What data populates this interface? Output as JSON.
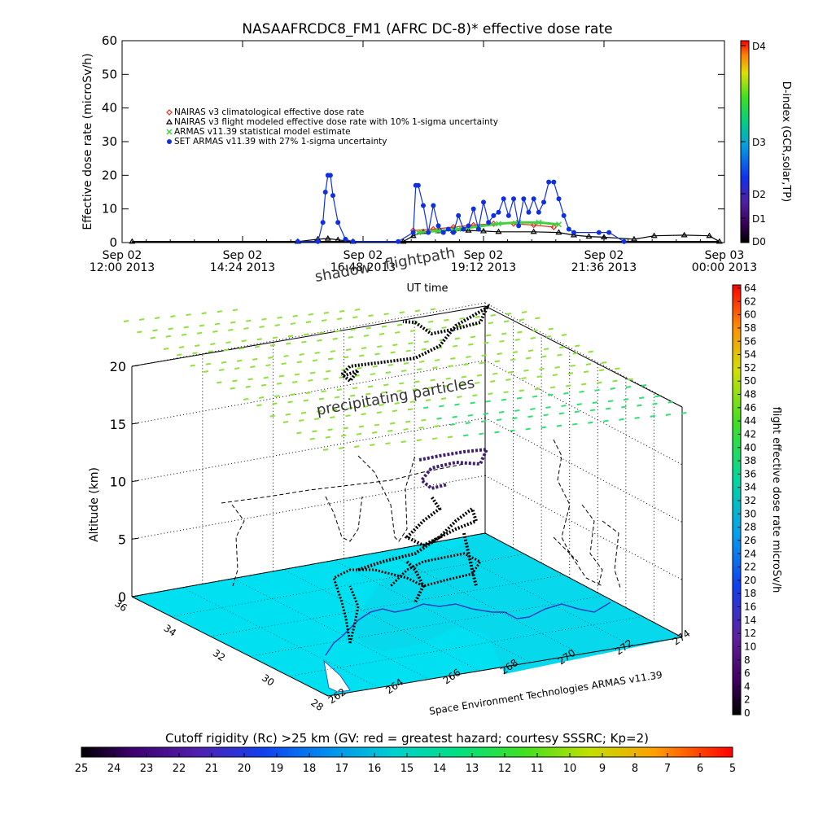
{
  "title": "NASAAFRCDC8_FM1 (AFRC DC-8)* effective dose rate",
  "chart_data": [
    {
      "type": "line",
      "title": "NASAAFRCDC8_FM1 (AFRC DC-8)* effective dose rate",
      "xlabel": "UT time",
      "ylabel": "Effective dose rate (microSv/h)",
      "ylim": [
        0,
        60
      ],
      "yticks": [
        0,
        10,
        20,
        30,
        40,
        50,
        60
      ],
      "xticks": [
        {
          "line1": "Sep 02",
          "line2": "12:00 2013",
          "hour": 12.0
        },
        {
          "line1": "Sep 02",
          "line2": "14:24 2013",
          "hour": 14.4
        },
        {
          "line1": "Sep 02",
          "line2": "16:48 2013",
          "hour": 16.8
        },
        {
          "line1": "Sep 02",
          "line2": "19:12 2013",
          "hour": 19.2
        },
        {
          "line1": "Sep 02",
          "line2": "21:36 2013",
          "hour": 21.6
        },
        {
          "line1": "Sep 03",
          "line2": "00:00 2013",
          "hour": 24.0
        }
      ],
      "xlim_hours": [
        12.0,
        24.0
      ],
      "legend": [
        {
          "label": "NAIRAS v3 climatological effective dose rate",
          "color": "#e03020",
          "marker": "diamond"
        },
        {
          "label": "NAIRAS v3 flight modeled effective dose rate with 10% 1-sigma uncertainty",
          "color": "#000000",
          "marker": "triangle"
        },
        {
          "label": "ARMAS v11.39 statistical model estimate",
          "color": "#40d040",
          "marker": "x"
        },
        {
          "label": "SET ARMAS v11.39 with 27% 1-sigma uncertainty",
          "color": "#1030e0",
          "marker": "dot"
        }
      ],
      "legend_position": "top-left",
      "series": [
        {
          "name": "NAIRAS v3 flight modeled effective dose rate with 10% 1-sigma uncertainty",
          "x": [
            12.2,
            15.5,
            15.9,
            16.1,
            16.3,
            16.6,
            17.6,
            17.8,
            18.0,
            18.3,
            18.6,
            18.9,
            19.2,
            19.5,
            20.2,
            20.7,
            21.0,
            21.3,
            21.6,
            22.2,
            22.6,
            23.2,
            23.7,
            23.9
          ],
          "values": [
            0.3,
            0.3,
            1.0,
            1.2,
            0.8,
            0.3,
            0.3,
            2.0,
            3.2,
            3.4,
            3.6,
            3.6,
            3.4,
            3.2,
            3.2,
            3.0,
            2.2,
            1.8,
            1.6,
            1.0,
            2.0,
            2.2,
            2.0,
            0.3
          ]
        },
        {
          "name": "NAIRAS v3 climatological effective dose rate",
          "x": [
            17.8,
            18.2,
            18.6,
            19.0,
            19.4,
            19.8,
            20.2,
            20.6
          ],
          "values": [
            3.6,
            4.0,
            4.6,
            5.2,
            5.6,
            5.6,
            5.2,
            4.6
          ]
        },
        {
          "name": "ARMAS v11.39 statistical model estimate",
          "x": [
            17.9,
            18.3,
            18.7,
            19.1,
            19.5,
            19.9,
            20.3,
            20.7
          ],
          "values": [
            3.0,
            3.5,
            4.0,
            4.8,
            5.6,
            6.0,
            6.0,
            5.4
          ]
        },
        {
          "name": "SET ARMAS v11.39 with 27% 1-sigma uncertainty",
          "x": [
            15.5,
            15.9,
            16.0,
            16.05,
            16.1,
            16.15,
            16.2,
            16.3,
            16.45,
            16.6,
            17.5,
            17.8,
            17.85,
            17.9,
            18.0,
            18.1,
            18.2,
            18.3,
            18.4,
            18.5,
            18.6,
            18.7,
            18.8,
            18.9,
            19.0,
            19.1,
            19.2,
            19.3,
            19.4,
            19.5,
            19.6,
            19.7,
            19.8,
            19.9,
            20.0,
            20.1,
            20.2,
            20.3,
            20.4,
            20.5,
            20.6,
            20.7,
            20.8,
            20.9,
            21.0,
            21.5,
            21.7,
            22.0
          ],
          "values": [
            0.3,
            0.3,
            6,
            15,
            20,
            20,
            14,
            6,
            1.0,
            0.3,
            0.3,
            3,
            17,
            17,
            11,
            3,
            11,
            5,
            3,
            4,
            3,
            8,
            4,
            5,
            10,
            4,
            12,
            6,
            8,
            9,
            13,
            8,
            13,
            5,
            13,
            9,
            13,
            9,
            12,
            18,
            18,
            13,
            8,
            4,
            3,
            3,
            3,
            0.3
          ]
        }
      ],
      "right_axis": {
        "label": "D-index (GCR,solar,TP)",
        "ticks": [
          "D0",
          "D1",
          "D2",
          "D3",
          "D4"
        ]
      }
    },
    {
      "type": "scatter3d",
      "annotations": [
        "shadow",
        "flightpath",
        "precipitating particles"
      ],
      "zlabel": "Altitude (km)",
      "zticks": [
        0,
        5,
        10,
        15,
        20
      ],
      "lat_ticks": [
        36,
        34,
        32,
        30,
        28
      ],
      "lon_ticks": [
        262,
        264,
        266,
        268,
        270,
        272,
        274
      ],
      "credit": "Space Environment Technologies ARMAS v11.39",
      "colorbar_right": {
        "label": "flight effective dose rate microSv/h",
        "ticks": [
          0,
          2,
          4,
          6,
          8,
          10,
          12,
          14,
          16,
          18,
          20,
          22,
          24,
          26,
          28,
          30,
          32,
          34,
          36,
          38,
          40,
          42,
          44,
          46,
          48,
          50,
          52,
          54,
          56,
          58,
          60,
          62,
          64
        ]
      },
      "colorbar_bottom": {
        "label": "Cutoff rigidity (Rc) >25 km (GV: red = greatest hazard; courtesy SSSRC; Kp=2)",
        "ticks": [
          25,
          24,
          23,
          22,
          21,
          20,
          19,
          18,
          17,
          16,
          15,
          14,
          13,
          12,
          11,
          10,
          9,
          8,
          7,
          6,
          5
        ]
      }
    }
  ]
}
